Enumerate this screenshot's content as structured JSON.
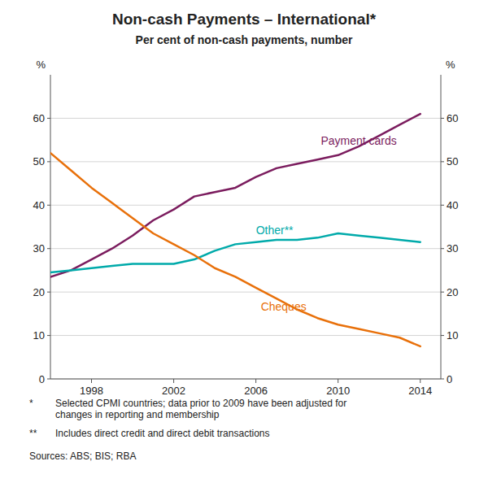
{
  "chart_data": {
    "type": "line",
    "title": "Non-cash Payments – International*",
    "subtitle": "Per cent of non-cash payments, number",
    "y_label": "%",
    "y2_label": "%",
    "x": [
      1996,
      1997,
      1998,
      1999,
      2000,
      2001,
      2002,
      2003,
      2004,
      2005,
      2006,
      2007,
      2008,
      2009,
      2010,
      2011,
      2012,
      2013,
      2014
    ],
    "xlim": [
      1996,
      2015
    ],
    "xticks": [
      1998,
      2002,
      2006,
      2010,
      2014
    ],
    "ylim": [
      0,
      70
    ],
    "yticks": [
      0,
      10,
      20,
      30,
      40,
      50,
      60
    ],
    "y2lim": [
      0,
      70
    ],
    "y2ticks": [
      0,
      10,
      20,
      30,
      40,
      50,
      60
    ],
    "grid": true,
    "series": [
      {
        "name": "Payment cards",
        "color": "#7B1C5E",
        "values": [
          23.5,
          25.0,
          27.5,
          30.0,
          33.0,
          36.5,
          39.0,
          42.0,
          43.0,
          44.0,
          46.5,
          48.5,
          49.5,
          50.5,
          51.5,
          53.5,
          56.0,
          58.5,
          61.0
        ]
      },
      {
        "name": "Other**",
        "color": "#00AAAA",
        "values": [
          24.5,
          25.0,
          25.5,
          26.0,
          26.5,
          26.5,
          26.5,
          27.5,
          29.5,
          31.0,
          31.5,
          32.0,
          32.0,
          32.5,
          33.5,
          33.0,
          32.5,
          32.0,
          31.5
        ]
      },
      {
        "name": "Cheques",
        "color": "#E8700A",
        "values": [
          52.0,
          48.0,
          44.0,
          40.5,
          37.0,
          33.5,
          31.0,
          28.5,
          25.5,
          23.5,
          21.0,
          18.5,
          16.0,
          14.0,
          12.5,
          11.5,
          10.5,
          9.5,
          7.5
        ]
      }
    ],
    "footnotes": [
      {
        "marker": "*",
        "text": "Selected CPMI countries; data prior to 2009 have been adjusted for\nchanges in reporting and membership"
      },
      {
        "marker": "**",
        "text": "Includes direct credit and direct debit transactions"
      }
    ],
    "source": "Sources:  ABS; BIS; RBA"
  }
}
